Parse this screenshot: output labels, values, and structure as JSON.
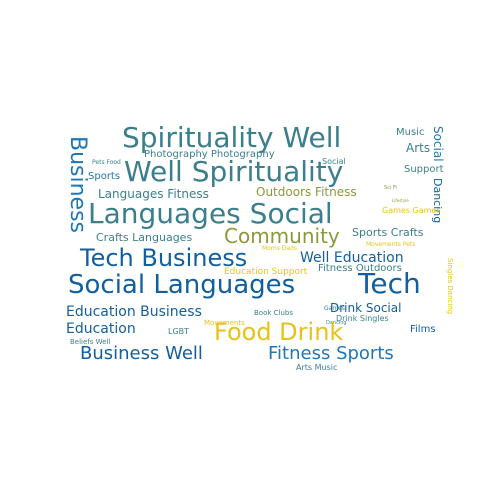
{
  "palette": {
    "teal": "#3b7f8c",
    "blue": "#1f77b4",
    "darkblue": "#125f9e",
    "olive": "#8a9a3a",
    "gold": "#e8c21a",
    "grey": "#4a7a86"
  },
  "words": [
    {
      "text": "Spirituality Well",
      "color": "#3b7f8c"
    },
    {
      "text": "Music",
      "color": "#3b7f8c"
    },
    {
      "text": "Arts",
      "color": "#3b7f8c"
    },
    {
      "text": "Business",
      "color": "#1f77b4"
    },
    {
      "text": "Pets Food",
      "color": "#3b7f8c"
    },
    {
      "text": "Photography Photography",
      "color": "#3b7f8c"
    },
    {
      "text": "Social",
      "color": "#3b7f8c"
    },
    {
      "text": "Social",
      "color": "#1f77b4"
    },
    {
      "text": "Well Spirituality",
      "color": "#3b7f8c"
    },
    {
      "text": "Sports",
      "color": "#1f77b4"
    },
    {
      "text": "Sci Fi",
      "color": "#8a9a3a"
    },
    {
      "text": "Languages Fitness",
      "color": "#3b7f8c"
    },
    {
      "text": "Outdoors Fitness",
      "color": "#8a9a3a"
    },
    {
      "text": "Support",
      "color": "#3b7f8c"
    },
    {
      "text": "Dancing",
      "color": "#125f9e"
    },
    {
      "text": "Lifestyle",
      "color": "#8a9a3a"
    },
    {
      "text": "Languages Social",
      "color": "#3b7f8c"
    },
    {
      "text": "Games Games",
      "color": "#e8c21a"
    },
    {
      "text": "Community",
      "color": "#8a9a3a"
    },
    {
      "text": "Crafts Languages",
      "color": "#3b7f8c"
    },
    {
      "text": "Sports Crafts",
      "color": "#3b7f8c"
    },
    {
      "text": "Moms Dads",
      "color": "#e8c21a"
    },
    {
      "text": "Movements Pets",
      "color": "#e8c21a"
    },
    {
      "text": "Tech Business",
      "color": "#125f9e"
    },
    {
      "text": "Well Education",
      "color": "#125f9e"
    },
    {
      "text": "Education Support",
      "color": "#e8c21a"
    },
    {
      "text": "Fitness Outdoors",
      "color": "#3b7f8c"
    },
    {
      "text": "Singles Dancing",
      "color": "#e8c21a"
    },
    {
      "text": "Social Languages",
      "color": "#125f9e"
    },
    {
      "text": "Tech",
      "color": "#125f9e"
    },
    {
      "text": "Education Business",
      "color": "#125f9e"
    },
    {
      "text": "Book Clubs",
      "color": "#3b7f8c"
    },
    {
      "text": "Games",
      "color": "#3b7f8c"
    },
    {
      "text": "Drink Social",
      "color": "#125f9e"
    },
    {
      "text": "Movements",
      "color": "#e8c21a"
    },
    {
      "text": "Dancing",
      "color": "#3b7f8c"
    },
    {
      "text": "Drink Singles",
      "color": "#3b7f8c"
    },
    {
      "text": "Education",
      "color": "#125f9e"
    },
    {
      "text": "LGBT",
      "color": "#3b7f8c"
    },
    {
      "text": "Food Drink",
      "color": "#e8c21a"
    },
    {
      "text": "Films",
      "color": "#125f9e"
    },
    {
      "text": "Beliefs Well",
      "color": "#3b7f8c"
    },
    {
      "text": "Business Well",
      "color": "#125f9e"
    },
    {
      "text": "Fitness Sports",
      "color": "#1f77b4"
    },
    {
      "text": "Arts Music",
      "color": "#3b7f8c"
    }
  ]
}
